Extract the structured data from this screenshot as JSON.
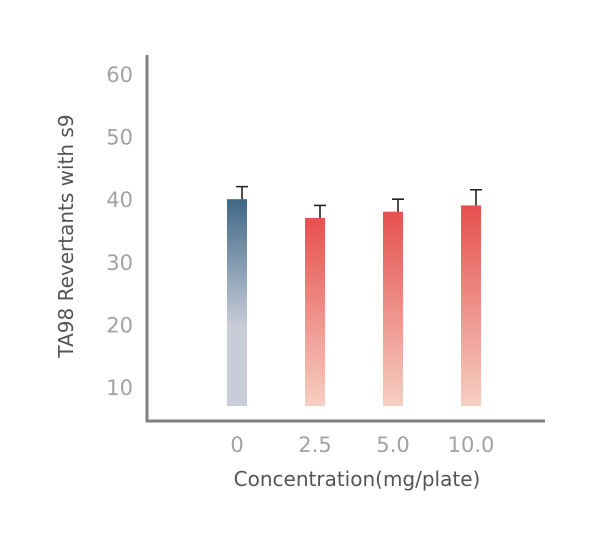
{
  "chart_data": {
    "type": "bar",
    "title": "",
    "xlabel": "Concentration(mg/plate)",
    "ylabel": "TA98 Revertants with s9",
    "categories": [
      "0",
      "2.5",
      "5.0",
      "10.0"
    ],
    "series": [
      {
        "values": [
          40,
          37,
          38,
          39
        ],
        "errors": [
          2,
          2,
          2,
          2.5
        ]
      }
    ],
    "yticks": [
      "10",
      "20",
      "30",
      "40",
      "50",
      "60"
    ],
    "ylim": [
      7,
      63
    ],
    "grid": false,
    "legend": "none",
    "colors": {
      "control_top": "#3f6787",
      "control_bottom": "#c9cdd9",
      "treated_top": "#e5504e",
      "treated_bottom": "#f6cfc2",
      "axis": "#7f7f7f",
      "tick_text": "#a3a3a3",
      "title_text": "#555555"
    }
  }
}
